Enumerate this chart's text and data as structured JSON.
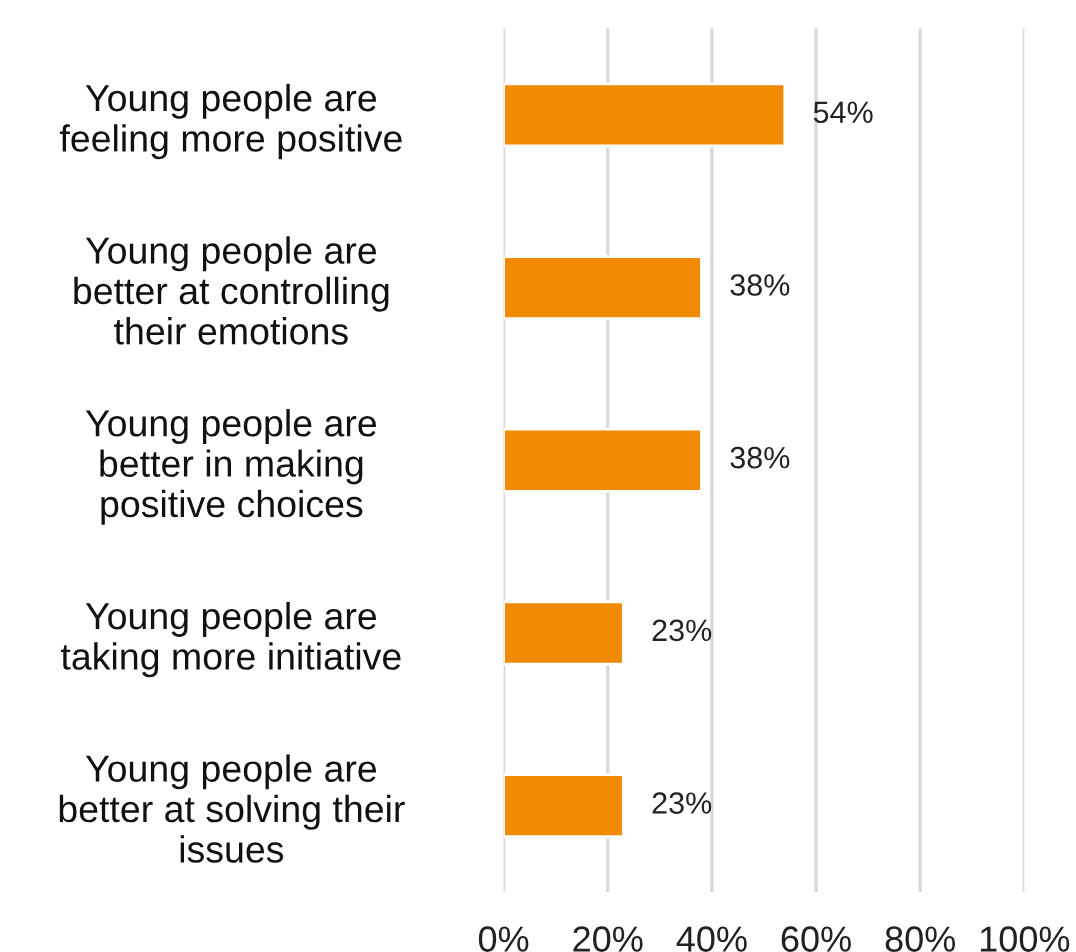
{
  "chart_data": {
    "type": "bar",
    "orientation": "horizontal",
    "categories": [
      "Young people are\nfeeling more positive",
      "Young people are\nbetter at controlling\ntheir emotions",
      "Young people are\nbetter in making\npositive choices",
      "Young people are\ntaking more initiative",
      "Young people are\nbetter at solving their\nissues"
    ],
    "values": [
      54,
      38,
      38,
      23,
      23
    ],
    "value_labels": [
      "54%",
      "38%",
      "38%",
      "23%",
      "23%"
    ],
    "color": "#f08a00",
    "xlim": [
      0,
      100
    ],
    "xticks": [
      {
        "value": 0,
        "label": "0%"
      },
      {
        "value": 20,
        "label": "20%"
      },
      {
        "value": 40,
        "label": "40%"
      },
      {
        "value": 60,
        "label": "60%"
      },
      {
        "value": 80,
        "label": "80%"
      },
      {
        "value": 100,
        "label": "100%"
      }
    ],
    "grid": "x"
  }
}
